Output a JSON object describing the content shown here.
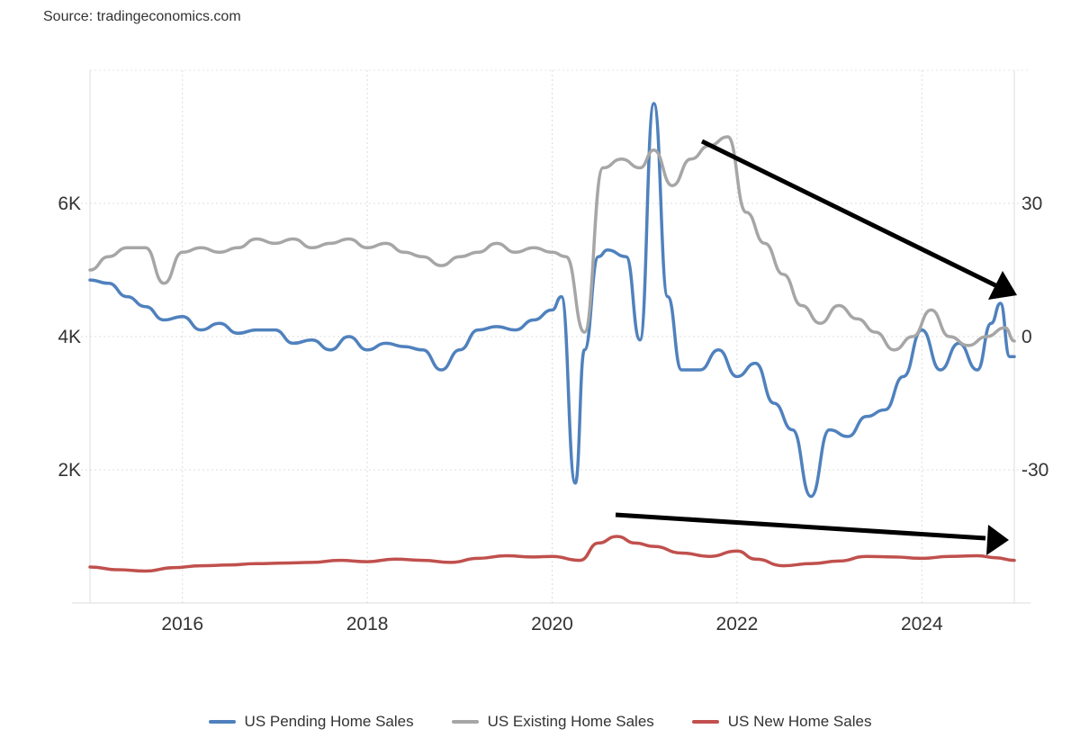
{
  "source": "Source: tradingeconomics.com",
  "chart_data": {
    "type": "line",
    "x_ticks": [
      "2016",
      "2018",
      "2020",
      "2022",
      "2024"
    ],
    "x_range": [
      2015.0,
      2025.0
    ],
    "y_left": {
      "ticks": [
        "2K",
        "4K",
        "6K"
      ],
      "tick_values": [
        2000,
        4000,
        6000
      ],
      "range": [
        0,
        8000
      ]
    },
    "y_right": {
      "ticks": [
        "-30",
        "0",
        "30"
      ],
      "tick_values": [
        -30,
        0,
        30
      ]
    },
    "grid": true,
    "legend_position": "bottom",
    "series": [
      {
        "name": "US Pending Home Sales",
        "color": "#4f81bd",
        "x": [
          2015.0,
          2015.2,
          2015.4,
          2015.6,
          2015.8,
          2016.0,
          2016.2,
          2016.4,
          2016.6,
          2016.8,
          2017.0,
          2017.2,
          2017.4,
          2017.6,
          2017.8,
          2018.0,
          2018.2,
          2018.4,
          2018.6,
          2018.8,
          2019.0,
          2019.2,
          2019.4,
          2019.6,
          2019.8,
          2020.0,
          2020.1,
          2020.25,
          2020.35,
          2020.5,
          2020.6,
          2020.8,
          2020.95,
          2021.1,
          2021.25,
          2021.4,
          2021.6,
          2021.8,
          2022.0,
          2022.2,
          2022.4,
          2022.6,
          2022.8,
          2023.0,
          2023.2,
          2023.4,
          2023.6,
          2023.8,
          2024.0,
          2024.2,
          2024.4,
          2024.6,
          2024.75,
          2024.85,
          2024.95,
          2025.0
        ],
        "y": [
          4850,
          4800,
          4600,
          4450,
          4250,
          4300,
          4100,
          4200,
          4050,
          4100,
          4100,
          3900,
          3950,
          3800,
          4000,
          3800,
          3900,
          3850,
          3800,
          3500,
          3800,
          4100,
          4150,
          4100,
          4250,
          4400,
          4600,
          1800,
          3800,
          5200,
          5300,
          5200,
          3950,
          7500,
          4600,
          3500,
          3500,
          3800,
          3400,
          3600,
          3000,
          2600,
          1600,
          2600,
          2500,
          2800,
          2900,
          3400,
          4100,
          3500,
          3900,
          3500,
          4200,
          4500,
          3700,
          3700
        ]
      },
      {
        "name": "US Existing Home Sales",
        "color": "#a6a6a6",
        "x": [
          2015.0,
          2015.2,
          2015.4,
          2015.6,
          2015.8,
          2016.0,
          2016.2,
          2016.4,
          2016.6,
          2016.8,
          2017.0,
          2017.2,
          2017.4,
          2017.6,
          2017.8,
          2018.0,
          2018.2,
          2018.4,
          2018.6,
          2018.8,
          2019.0,
          2019.2,
          2019.4,
          2019.6,
          2019.8,
          2020.0,
          2020.15,
          2020.35,
          2020.55,
          2020.75,
          2020.95,
          2021.1,
          2021.3,
          2021.5,
          2021.7,
          2021.9,
          2022.1,
          2022.3,
          2022.5,
          2022.7,
          2022.9,
          2023.1,
          2023.3,
          2023.5,
          2023.7,
          2023.9,
          2024.1,
          2024.3,
          2024.5,
          2024.7,
          2024.9,
          2025.0
        ],
        "y": [
          15,
          18,
          20,
          20,
          12,
          19,
          20,
          19,
          20,
          22,
          21,
          22,
          20,
          21,
          22,
          20,
          21,
          19,
          18,
          16,
          18,
          19,
          21,
          19,
          20,
          19,
          18,
          1,
          38,
          40,
          38,
          42,
          34,
          40,
          43,
          45,
          28,
          21,
          14,
          7,
          3,
          7,
          4,
          1,
          -3,
          0,
          6,
          0,
          -2,
          0,
          2,
          -1
        ]
      },
      {
        "name": "US New Home Sales",
        "color": "#c0504d",
        "x": [
          2015.0,
          2015.3,
          2015.6,
          2015.9,
          2016.2,
          2016.5,
          2016.8,
          2017.1,
          2017.4,
          2017.7,
          2018.0,
          2018.3,
          2018.6,
          2018.9,
          2019.2,
          2019.5,
          2019.8,
          2020.0,
          2020.3,
          2020.5,
          2020.7,
          2020.9,
          2021.1,
          2021.4,
          2021.7,
          2022.0,
          2022.2,
          2022.5,
          2022.8,
          2023.1,
          2023.4,
          2023.7,
          2024.0,
          2024.3,
          2024.6,
          2024.8,
          2025.0
        ],
        "y": [
          540,
          500,
          480,
          530,
          560,
          570,
          590,
          600,
          610,
          640,
          620,
          660,
          640,
          610,
          670,
          710,
          690,
          700,
          640,
          900,
          1000,
          900,
          850,
          750,
          700,
          780,
          660,
          560,
          590,
          630,
          700,
          690,
          670,
          700,
          710,
          680,
          640
        ]
      }
    ]
  },
  "legend": [
    {
      "label": "US Pending Home Sales",
      "color": "#4f81bd"
    },
    {
      "label": "US Existing Home Sales",
      "color": "#a6a6a6"
    },
    {
      "label": "US New Home Sales",
      "color": "#c0504d"
    }
  ]
}
